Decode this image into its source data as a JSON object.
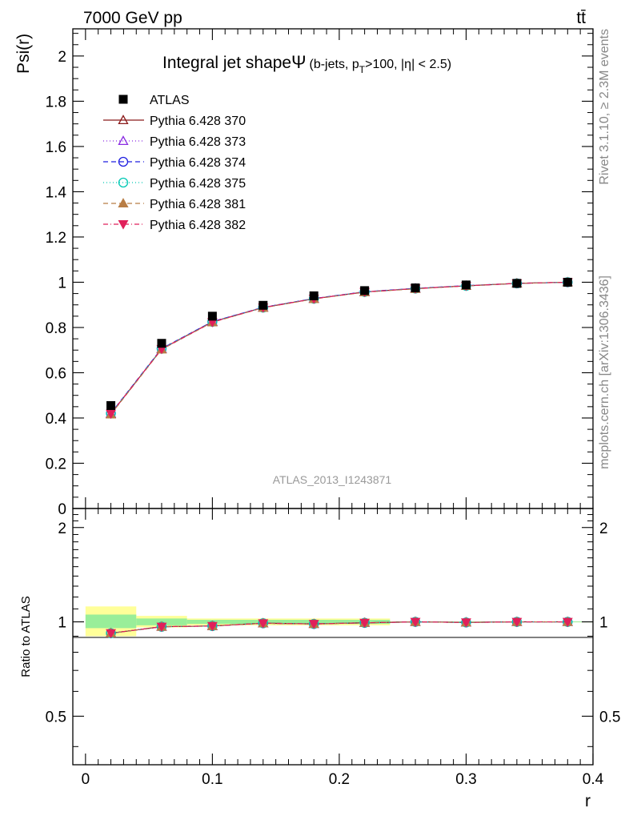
{
  "header": {
    "left": "7000 GeV pp",
    "right": "tt̄"
  },
  "side_texts": {
    "rivet": "Rivet 3.1.10, ≥ 2.3M events",
    "mcplots": "mcplots.cern.ch [arXiv:1306.3436]"
  },
  "chart_data": [
    {
      "type": "line",
      "title_main": "Integral jet shape",
      "title_symbol": "Ψ",
      "title_sub_a": "(b-jets, p",
      "title_sub_sub": "T",
      "title_sub_b": ">100, |η| < 2.5)",
      "ylabel": "Psi(r)",
      "xlabel": "",
      "xlim": [
        -0.01,
        0.4
      ],
      "ylim": [
        0,
        2.12
      ],
      "yticks": [
        {
          "v": 0,
          "label": "0"
        },
        {
          "v": 0.2,
          "label": "0.2"
        },
        {
          "v": 0.4,
          "label": "0.4"
        },
        {
          "v": 0.6,
          "label": "0.6"
        },
        {
          "v": 0.8,
          "label": "0.8"
        },
        {
          "v": 1,
          "label": "1"
        },
        {
          "v": 1.2,
          "label": "1.2"
        },
        {
          "v": 1.4,
          "label": "1.4"
        },
        {
          "v": 1.6,
          "label": "1.6"
        },
        {
          "v": 1.8,
          "label": "1.8"
        },
        {
          "v": 2,
          "label": "2"
        }
      ],
      "watermark": "ATLAS_2013_I1243871",
      "legend_placement": "top-left",
      "x": [
        0.02,
        0.06,
        0.1,
        0.14,
        0.18,
        0.22,
        0.26,
        0.3,
        0.34,
        0.38
      ],
      "data": {
        "name": "ATLAS",
        "values": [
          0.455,
          0.73,
          0.85,
          0.898,
          0.94,
          0.963,
          0.975,
          0.988,
          0.995,
          1.0
        ]
      },
      "series": [
        {
          "name": "Pythia 6.428 370",
          "color": "#8b1a1a",
          "dash": "",
          "marker": "triangle-up-open",
          "values": [
            0.418,
            0.705,
            0.825,
            0.888,
            0.927,
            0.957,
            0.972,
            0.984,
            0.995,
            1.0
          ]
        },
        {
          "name": "Pythia 6.428 373",
          "color": "#8a2be2",
          "dash": "1,3",
          "marker": "triangle-up-open",
          "values": [
            0.42,
            0.706,
            0.826,
            0.889,
            0.928,
            0.957,
            0.972,
            0.984,
            0.995,
            1.0
          ]
        },
        {
          "name": "Pythia 6.428 374",
          "color": "#1f1fe0",
          "dash": "6,4",
          "marker": "circle-open",
          "values": [
            0.421,
            0.707,
            0.826,
            0.889,
            0.928,
            0.958,
            0.973,
            0.985,
            0.995,
            1.0
          ]
        },
        {
          "name": "Pythia 6.428 375",
          "color": "#00c8b4",
          "dash": "1,3",
          "marker": "circle-open",
          "values": [
            0.42,
            0.706,
            0.825,
            0.888,
            0.927,
            0.957,
            0.972,
            0.984,
            0.995,
            1.0
          ]
        },
        {
          "name": "Pythia 6.428 381",
          "color": "#b87d45",
          "dash": "6,4",
          "marker": "triangle-up-filled",
          "values": [
            0.416,
            0.703,
            0.823,
            0.887,
            0.926,
            0.956,
            0.971,
            0.984,
            0.995,
            1.0
          ]
        },
        {
          "name": "Pythia 6.428 382",
          "color": "#e0205a",
          "dash": "6,3,1,3",
          "marker": "triangle-down-filled",
          "values": [
            0.419,
            0.705,
            0.824,
            0.888,
            0.927,
            0.957,
            0.972,
            0.984,
            0.995,
            1.0
          ]
        }
      ]
    },
    {
      "type": "line",
      "ylabel": "Ratio to ATLAS",
      "xlabel": "r",
      "xlim": [
        -0.01,
        0.4
      ],
      "ylim": [
        0.35,
        2.3
      ],
      "xticks": [
        {
          "v": 0,
          "label": "0"
        },
        {
          "v": 0.1,
          "label": "0.1"
        },
        {
          "v": 0.2,
          "label": "0.2"
        },
        {
          "v": 0.3,
          "label": "0.3"
        },
        {
          "v": 0.4,
          "label": "0.4"
        }
      ],
      "yticks": [
        {
          "v": 0.5,
          "label": "0.5"
        },
        {
          "v": 1,
          "label": "1"
        },
        {
          "v": 2,
          "label": "2"
        }
      ],
      "bands": [
        {
          "x0": 0.0,
          "x1": 0.04,
          "stat_lo": 0.955,
          "stat_hi": 1.055,
          "tot_lo": 0.9,
          "tot_hi": 1.12
        },
        {
          "x0": 0.04,
          "x1": 0.08,
          "stat_lo": 0.975,
          "stat_hi": 1.025,
          "tot_lo": 0.96,
          "tot_hi": 1.045
        },
        {
          "x0": 0.08,
          "x1": 0.24,
          "stat_lo": 0.985,
          "stat_hi": 1.015,
          "tot_lo": 0.975,
          "tot_hi": 1.025
        },
        {
          "x0": 0.24,
          "x1": 0.4,
          "stat_lo": 0.997,
          "stat_hi": 1.003,
          "tot_lo": 0.997,
          "tot_hi": 1.003
        }
      ],
      "ratios": [
        0.92,
        0.965,
        0.97,
        0.99,
        0.985,
        0.993,
        1.0,
        0.996,
        1.0,
        1.0
      ]
    }
  ]
}
